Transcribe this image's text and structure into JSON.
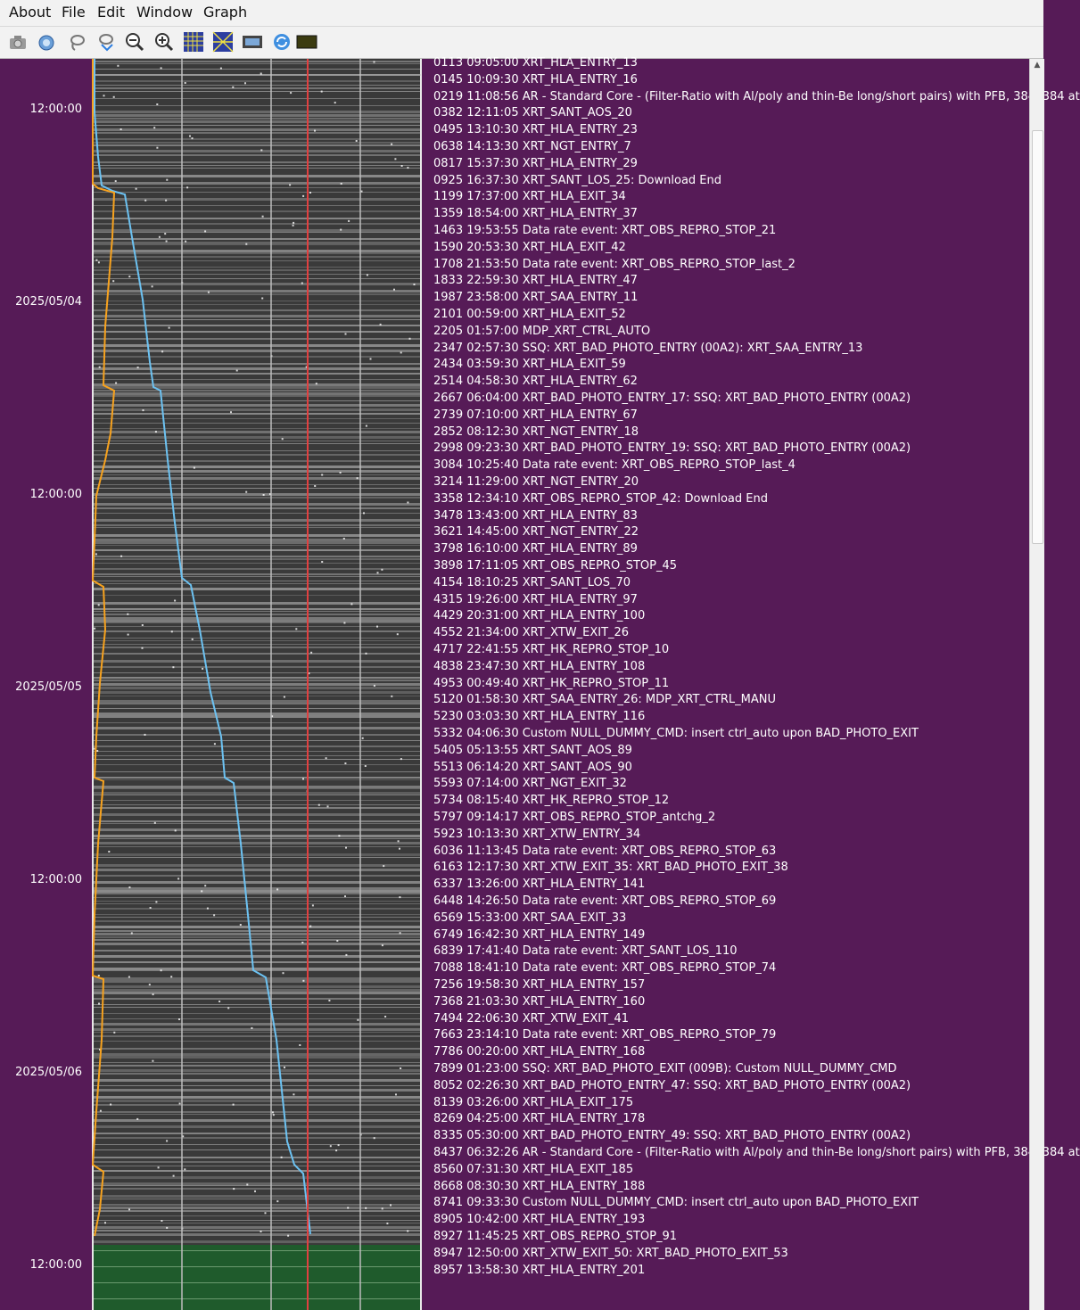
{
  "menu": {
    "about": "About",
    "file": "File",
    "edit": "Edit",
    "window": "Window",
    "graph": "Graph"
  },
  "toolbar": {
    "icons": [
      "camera-icon",
      "camera-web-icon",
      "lasso-icon",
      "lasso-down-icon",
      "zoom-out-icon",
      "zoom-in-icon",
      "grid-icon",
      "grid-diagonal-icon",
      "film-icon",
      "refresh-icon",
      "dark-rect-icon"
    ]
  },
  "colors": {
    "background": "#561b57",
    "grid_dark": "#3a3a3a",
    "grid_light": "#9a9a9a",
    "future_fill": "#1f5b2c",
    "line_blue": "#6cc2f2",
    "line_orange": "#f7a21e",
    "now_line": "#e04040"
  },
  "time_labels": [
    "12:00:00",
    "2025/05/04",
    "12:00:00",
    "2025/05/05",
    "12:00:00",
    "2025/05/06",
    "12:00:00"
  ],
  "events": [
    "0113 09:05:00 XRT_HLA_ENTRY_13",
    "0145 10:09:30 XRT_HLA_ENTRY_16",
    "0219 11:08:56 AR - Standard Core - (Filter-Ratio with Al/poly and thin-Be long/short pairs) with PFB, 384x384 at",
    "0382 12:11:05 XRT_SANT_AOS_20",
    "0495 13:10:30 XRT_HLA_ENTRY_23",
    "0638 14:13:30 XRT_NGT_ENTRY_7",
    "0817 15:37:30 XRT_HLA_ENTRY_29",
    "0925 16:37:30 XRT_SANT_LOS_25: Download End",
    "1199 17:37:00 XRT_HLA_EXIT_34",
    "1359 18:54:00 XRT_HLA_ENTRY_37",
    "1463 19:53:55 Data rate event: XRT_OBS_REPRO_STOP_21",
    "1590 20:53:30 XRT_HLA_EXIT_42",
    "1708 21:53:50 Data rate event: XRT_OBS_REPRO_STOP_last_2",
    "1833 22:59:30 XRT_HLA_ENTRY_47",
    "1987 23:58:00 XRT_SAA_ENTRY_11",
    "2101 00:59:00 XRT_HLA_EXIT_52",
    "2205 01:57:00 MDP_XRT_CTRL_AUTO",
    "2347 02:57:30 SSQ: XRT_BAD_PHOTO_ENTRY (00A2): XRT_SAA_ENTRY_13",
    "2434 03:59:30 XRT_HLA_EXIT_59",
    "2514 04:58:30 XRT_HLA_ENTRY_62",
    "2667 06:04:00 XRT_BAD_PHOTO_ENTRY_17: SSQ: XRT_BAD_PHOTO_ENTRY (00A2)",
    "2739 07:10:00 XRT_HLA_ENTRY_67",
    "2852 08:12:30 XRT_NGT_ENTRY_18",
    "2998 09:23:30 XRT_BAD_PHOTO_ENTRY_19: SSQ: XRT_BAD_PHOTO_ENTRY (00A2)",
    "3084 10:25:40 Data rate event: XRT_OBS_REPRO_STOP_last_4",
    "3214 11:29:00 XRT_NGT_ENTRY_20",
    "3358 12:34:10 XRT_OBS_REPRO_STOP_42: Download End",
    "3478 13:43:00 XRT_HLA_ENTRY_83",
    "3621 14:45:00 XRT_NGT_ENTRY_22",
    "3798 16:10:00 XRT_HLA_ENTRY_89",
    "3898 17:11:05 XRT_OBS_REPRO_STOP_45",
    "4154 18:10:25 XRT_SANT_LOS_70",
    "4315 19:26:00 XRT_HLA_ENTRY_97",
    "4429 20:31:00 XRT_HLA_ENTRY_100",
    "4552 21:34:00 XRT_XTW_EXIT_26",
    "4717 22:41:55 XRT_HK_REPRO_STOP_10",
    "4838 23:47:30 XRT_HLA_ENTRY_108",
    "4953 00:49:40 XRT_HK_REPRO_STOP_11",
    "5120 01:58:30 XRT_SAA_ENTRY_26: MDP_XRT_CTRL_MANU",
    "5230 03:03:30 XRT_HLA_ENTRY_116",
    "5332 04:06:30 Custom NULL_DUMMY_CMD: insert ctrl_auto upon BAD_PHOTO_EXIT",
    "5405 05:13:55 XRT_SANT_AOS_89",
    "5513 06:14:20 XRT_SANT_AOS_90",
    "5593 07:14:00 XRT_NGT_EXIT_32",
    "5734 08:15:40 XRT_HK_REPRO_STOP_12",
    "5797 09:14:17 XRT_OBS_REPRO_STOP_antchg_2",
    "5923 10:13:30 XRT_XTW_ENTRY_34",
    "6036 11:13:45 Data rate event: XRT_OBS_REPRO_STOP_63",
    "6163 12:17:30 XRT_XTW_EXIT_35: XRT_BAD_PHOTO_EXIT_38",
    "6337 13:26:00 XRT_HLA_ENTRY_141",
    "6448 14:26:50 Data rate event: XRT_OBS_REPRO_STOP_69",
    "6569 15:33:00 XRT_SAA_EXIT_33",
    "6749 16:42:30 XRT_HLA_ENTRY_149",
    "6839 17:41:40 Data rate event: XRT_SANT_LOS_110",
    "7088 18:41:10 Data rate event: XRT_OBS_REPRO_STOP_74",
    "7256 19:58:30 XRT_HLA_ENTRY_157",
    "7368 21:03:30 XRT_HLA_ENTRY_160",
    "7494 22:06:30 XRT_XTW_EXIT_41",
    "7663 23:14:10 Data rate event: XRT_OBS_REPRO_STOP_79",
    "7786 00:20:00 XRT_HLA_ENTRY_168",
    "7899 01:23:00 SSQ: XRT_BAD_PHOTO_EXIT (009B): Custom NULL_DUMMY_CMD",
    "8052 02:26:30 XRT_BAD_PHOTO_ENTRY_47: SSQ: XRT_BAD_PHOTO_ENTRY (00A2)",
    "8139 03:26:00 XRT_HLA_EXIT_175",
    "8269 04:25:00 XRT_HLA_ENTRY_178",
    "8335 05:30:00 XRT_BAD_PHOTO_ENTRY_49: SSQ: XRT_BAD_PHOTO_ENTRY (00A2)",
    "8437 06:32:26 AR - Standard Core - (Filter-Ratio with Al/poly and thin-Be long/short pairs) with PFB, 384x384 at",
    "8560 07:31:30 XRT_HLA_EXIT_185",
    "8668 08:30:30 XRT_HLA_ENTRY_188",
    "8741 09:33:30 Custom NULL_DUMMY_CMD: insert ctrl_auto upon BAD_PHOTO_EXIT",
    "8905 10:42:00 XRT_HLA_ENTRY_193",
    "8927 11:45:25 XRT_OBS_REPRO_STOP_91",
    "8947 12:50:00 XRT_XTW_EXIT_50: XRT_BAD_PHOTO_EXIT_53",
    "8957 13:58:30 XRT_HLA_ENTRY_201"
  ]
}
